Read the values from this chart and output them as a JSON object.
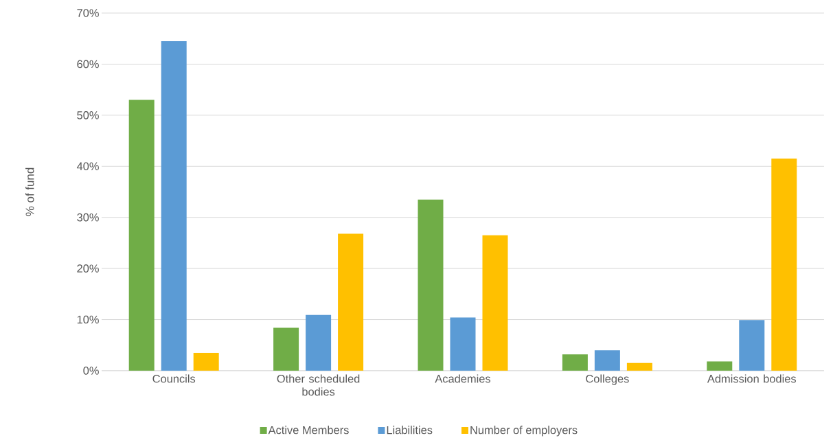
{
  "chart_data": {
    "type": "bar",
    "ylabel": "% of fund",
    "categories": [
      "Councils",
      "Other scheduled bodies",
      "Academies",
      "Colleges",
      "Admission bodies"
    ],
    "series": [
      {
        "name": "Active Members",
        "color": "#70ad47",
        "values": [
          53.0,
          8.4,
          33.5,
          3.2,
          1.8
        ]
      },
      {
        "name": "Liabilities",
        "color": "#5b9bd5",
        "values": [
          64.5,
          10.9,
          10.4,
          4.0,
          9.9
        ]
      },
      {
        "name": "Number of employers",
        "color": "#ffc000",
        "values": [
          3.5,
          26.8,
          26.5,
          1.5,
          41.5
        ]
      }
    ],
    "ylim": [
      0,
      70
    ],
    "yticks": [
      {
        "value": 0,
        "label": "0%"
      },
      {
        "value": 10,
        "label": "10%"
      },
      {
        "value": 20,
        "label": "20%"
      },
      {
        "value": 30,
        "label": "30%"
      },
      {
        "value": 40,
        "label": "40%"
      },
      {
        "value": 50,
        "label": "50%"
      },
      {
        "value": 60,
        "label": "60%"
      },
      {
        "value": 70,
        "label": "70%"
      }
    ],
    "grid": "y",
    "legend": "bottom"
  }
}
